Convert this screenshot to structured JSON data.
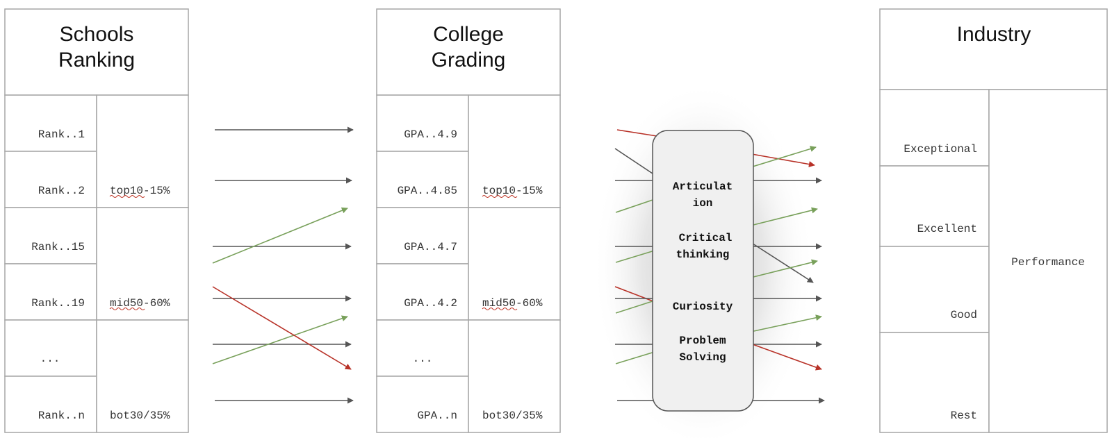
{
  "watermark": "",
  "schools": {
    "title_line1": "Schools",
    "title_line2": "Ranking",
    "ranks": [
      "Rank..1",
      "Rank..2",
      "Rank..15",
      "Rank..19",
      "...",
      "Rank..n"
    ],
    "tiers": [
      "top10-15%",
      "mid50-60%",
      "bot30/35%"
    ]
  },
  "college": {
    "title_line1": "College",
    "title_line2": "Grading",
    "grades": [
      "GPA..4.9",
      "GPA..4.85",
      "GPA..4.7",
      "GPA..4.2",
      "...",
      "GPA..n"
    ],
    "tiers": [
      "top10-15%",
      "mid50-60%",
      "bot30/35%"
    ]
  },
  "filter": {
    "skills": [
      {
        "line1": "Articulat",
        "line2": "ion"
      },
      {
        "line1": "Critical",
        "line2": "thinking"
      },
      {
        "line1": "Curiosity",
        "line2": ""
      },
      {
        "line1": "Problem",
        "line2": "Solving"
      }
    ]
  },
  "industry": {
    "title": "Industry",
    "levels": [
      "Exceptional",
      "Excellent",
      "Good",
      "Rest"
    ],
    "performance_label": "Performance"
  },
  "colors": {
    "dark_arrow": "#555555",
    "green_arrow": "#78a05a",
    "red_arrow": "#b83228",
    "table_border": "#a6a6a6",
    "capsule_fill": "#f0f0f0"
  }
}
